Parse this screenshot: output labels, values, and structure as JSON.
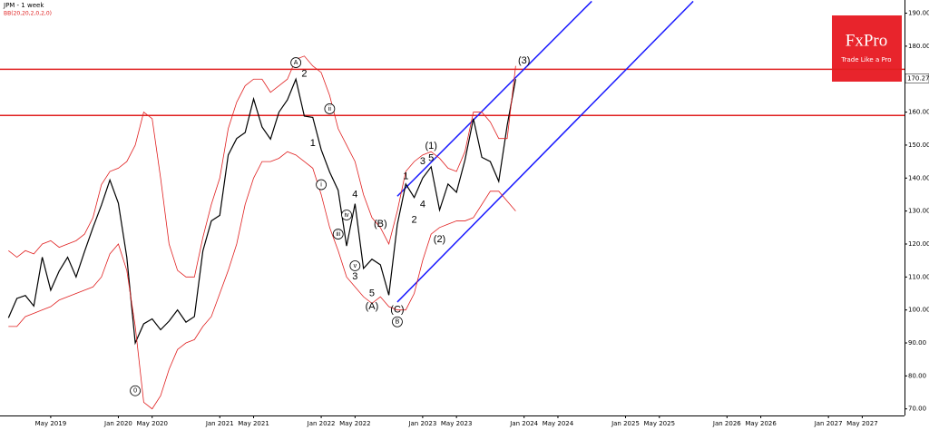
{
  "chart_data": {
    "type": "line",
    "title": "JPM - 1 week",
    "indicator": "BB(20,20,2,0,2,0)",
    "logo": {
      "name": "FxPro",
      "tagline": "Trade Like a Pro"
    },
    "x": [
      "2018-12",
      "2019-01",
      "2019-02",
      "2019-03",
      "2019-04",
      "2019-05",
      "2019-06",
      "2019-07",
      "2019-08",
      "2019-09",
      "2019-10",
      "2019-11",
      "2019-12",
      "2020-01",
      "2020-02",
      "2020-03",
      "2020-04",
      "2020-05",
      "2020-06",
      "2020-07",
      "2020-08",
      "2020-09",
      "2020-10",
      "2020-11",
      "2020-12",
      "2021-01",
      "2021-02",
      "2021-03",
      "2021-04",
      "2021-05",
      "2021-06",
      "2021-07",
      "2021-08",
      "2021-09",
      "2021-10",
      "2021-11",
      "2021-12",
      "2022-01",
      "2022-02",
      "2022-03",
      "2022-04",
      "2022-05",
      "2022-06",
      "2022-07",
      "2022-08",
      "2022-09",
      "2022-10",
      "2022-11",
      "2022-12",
      "2023-01",
      "2023-02",
      "2023-03",
      "2023-04",
      "2023-05",
      "2023-06",
      "2023-07",
      "2023-08",
      "2023-09",
      "2023-10",
      "2023-11",
      "2023-12"
    ],
    "series": [
      {
        "name": "JPM",
        "color": "#000000",
        "values": [
          97.6,
          103.5,
          104.4,
          101.2,
          116,
          106,
          111.8,
          116,
          110,
          117.7,
          125,
          131.8,
          139.4,
          132.4,
          116,
          90,
          95.8,
          97.3,
          94,
          96.6,
          100,
          96.3,
          98,
          117.9,
          127,
          128.7,
          147,
          152,
          153.8,
          164,
          155.5,
          151.8,
          160,
          163.7,
          170,
          158.8,
          158.4,
          148.6,
          141.8,
          136.3,
          119.4,
          132.2,
          112.6,
          115.4,
          113.7,
          104.5,
          125.9,
          138.2,
          134.1,
          140,
          143.4,
          130.3,
          138.2,
          135.7,
          145.4,
          158,
          146.3,
          145,
          139,
          156,
          170
        ]
      },
      {
        "name": "BB upper",
        "color": "#e02020",
        "values": [
          118,
          116,
          118,
          117,
          120,
          121,
          119,
          120,
          121,
          123,
          128,
          138,
          142,
          143,
          145,
          150,
          160,
          158,
          140,
          120,
          112,
          110,
          110,
          122,
          132,
          140,
          155,
          163,
          168,
          170,
          170,
          166,
          168,
          170,
          176,
          177,
          174,
          172,
          165,
          155,
          150,
          145,
          135,
          128,
          125,
          120,
          130,
          142,
          145,
          147,
          148,
          146,
          143,
          142,
          148,
          160,
          160,
          157,
          152,
          152,
          174
        ]
      },
      {
        "name": "BB lower",
        "color": "#e02020",
        "values": [
          95,
          95,
          98,
          99,
          100,
          101,
          103,
          104,
          105,
          106,
          107,
          110,
          117,
          120,
          112,
          95,
          72,
          70,
          74,
          82,
          88,
          90,
          91,
          95,
          98,
          105,
          112,
          120,
          132,
          140,
          145,
          145,
          146,
          148,
          147,
          145,
          143,
          135,
          125,
          118,
          110,
          107,
          104,
          102,
          104,
          101,
          100,
          100,
          105,
          115,
          123,
          125,
          126,
          127,
          127,
          128,
          132,
          136,
          136,
          133,
          130
        ]
      }
    ],
    "xlim": [
      "2018-11",
      "2027-10"
    ],
    "xticks": [
      {
        "value": "2019-05",
        "label": "May 2019"
      },
      {
        "value": "2020-01",
        "label": "Jan 2020"
      },
      {
        "value": "2020-05",
        "label": "May 2020"
      },
      {
        "value": "2021-01",
        "label": "Jan 2021"
      },
      {
        "value": "2021-05",
        "label": "May 2021"
      },
      {
        "value": "2022-01",
        "label": "Jan 2022"
      },
      {
        "value": "2022-05",
        "label": "May 2022"
      },
      {
        "value": "2023-01",
        "label": "Jan 2023"
      },
      {
        "value": "2023-05",
        "label": "May 2023"
      },
      {
        "value": "2024-01",
        "label": "Jan 2024"
      },
      {
        "value": "2024-05",
        "label": "May 2024"
      },
      {
        "value": "2025-01",
        "label": "Jan 2025"
      },
      {
        "value": "2025-05",
        "label": "May 2025"
      },
      {
        "value": "2026-01",
        "label": "Jan 2026"
      },
      {
        "value": "2026-05",
        "label": "May 2026"
      },
      {
        "value": "2027-01",
        "label": "Jan 2027"
      },
      {
        "value": "2027-05",
        "label": "May 2027"
      }
    ],
    "ylim": [
      68,
      194
    ],
    "yticks": [
      {
        "value": 70,
        "label": "70.00"
      },
      {
        "value": 80,
        "label": "80.00"
      },
      {
        "value": 90,
        "label": "90.00"
      },
      {
        "value": 100,
        "label": "100.00"
      },
      {
        "value": 110,
        "label": "110.00"
      },
      {
        "value": 120,
        "label": "120.00"
      },
      {
        "value": 130,
        "label": "130.00"
      },
      {
        "value": 140,
        "label": "140.00"
      },
      {
        "value": 150,
        "label": "150.00"
      },
      {
        "value": 160,
        "label": "160.00"
      },
      {
        "value": 180,
        "label": "180.00"
      },
      {
        "value": 190,
        "label": "190.00"
      }
    ],
    "current_price": 170.27,
    "levels": {
      "color": "#e02020",
      "values": [
        173,
        159
      ]
    },
    "channel": {
      "color": "#1a1aff",
      "lines": [
        {
          "x": [
            "2022-10",
            "2024-09"
          ],
          "values": [
            134.5,
            193.6
          ]
        },
        {
          "x": [
            "2022-10",
            "2025-09"
          ],
          "values": [
            102.4,
            193.6
          ]
        }
      ]
    },
    "annotations": [
      {
        "text": "0",
        "circled": true,
        "x": "2020-03",
        "y": 75.5
      },
      {
        "text": "A",
        "circled": true,
        "x": "2021-10",
        "y": 175
      },
      {
        "text": "2",
        "circled": false,
        "x": "2021-11",
        "y": 171.6
      },
      {
        "text": "ii",
        "circled": true,
        "x": "2022-02",
        "y": 161
      },
      {
        "text": "1",
        "circled": false,
        "x": "2021-12",
        "y": 150.5
      },
      {
        "text": "i",
        "circled": true,
        "x": "2022-01",
        "y": 138
      },
      {
        "text": "4",
        "circled": false,
        "x": "2022-05",
        "y": 135
      },
      {
        "text": "iv",
        "circled": true,
        "x": "2022-04",
        "y": 128.8
      },
      {
        "text": "iii",
        "circled": true,
        "x": "2022-03",
        "y": 123
      },
      {
        "text": "v",
        "circled": true,
        "x": "2022-05",
        "y": 113.4
      },
      {
        "text": "3",
        "circled": false,
        "x": "2022-05",
        "y": 110
      },
      {
        "text": "5",
        "circled": false,
        "x": "2022-07",
        "y": 105
      },
      {
        "text": "(A)",
        "circled": false,
        "x": "2022-07",
        "y": 101
      },
      {
        "text": "(B)",
        "circled": false,
        "x": "2022-08",
        "y": 126
      },
      {
        "text": "(C)",
        "circled": false,
        "x": "2022-10",
        "y": 100
      },
      {
        "text": "B",
        "circled": true,
        "x": "2022-10",
        "y": 96.4
      },
      {
        "text": "1",
        "circled": false,
        "x": "2022-11",
        "y": 140.5
      },
      {
        "text": "3",
        "circled": false,
        "x": "2023-01",
        "y": 145
      },
      {
        "text": "(1)",
        "circled": false,
        "x": "2023-02",
        "y": 149.7
      },
      {
        "text": "5",
        "circled": false,
        "x": "2023-02",
        "y": 146
      },
      {
        "text": "4",
        "circled": false,
        "x": "2023-01",
        "y": 131.9
      },
      {
        "text": "2",
        "circled": false,
        "x": "2022-12",
        "y": 127.2
      },
      {
        "text": "(2)",
        "circled": false,
        "x": "2023-03",
        "y": 121.4
      },
      {
        "text": "(3)",
        "circled": false,
        "x": "2024-01",
        "y": 175.5
      }
    ]
  }
}
